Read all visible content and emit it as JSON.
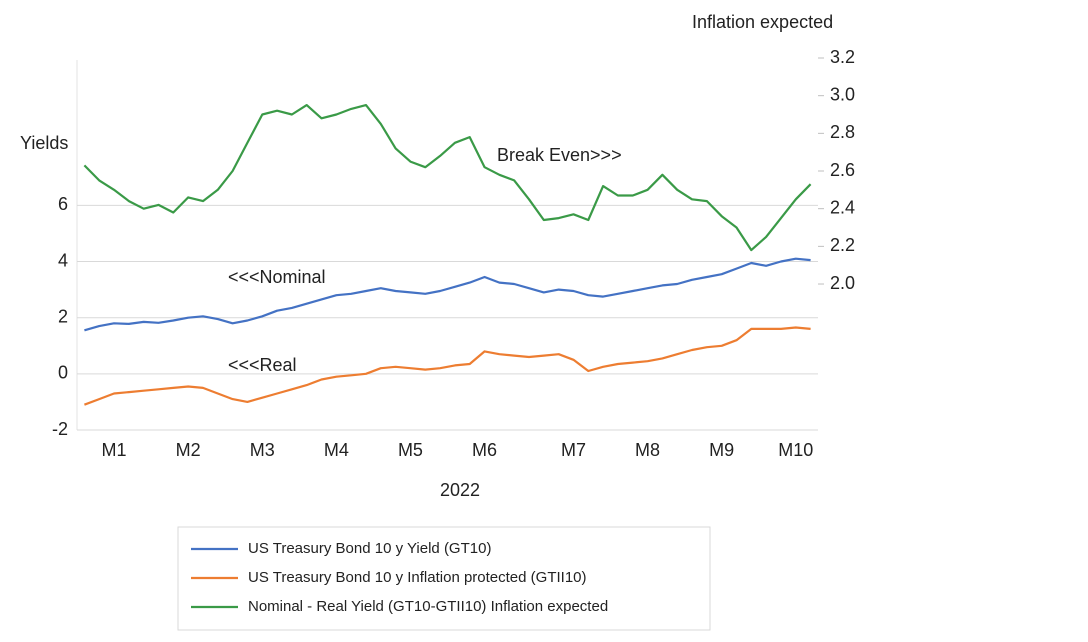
{
  "chart_data": {
    "type": "line",
    "y_label": "Yields",
    "y2_label": "Inflation expected",
    "x_label": "2022",
    "annotations": [
      "Break Even>>>",
      "<<<Nominal",
      "<<<Real"
    ],
    "categories": [
      null,
      null,
      "M1",
      null,
      null,
      null,
      null,
      "M2",
      null,
      null,
      null,
      null,
      "M3",
      null,
      null,
      null,
      null,
      "M4",
      null,
      null,
      null,
      null,
      "M5",
      null,
      null,
      null,
      null,
      "M6",
      null,
      null,
      null,
      null,
      null,
      "M7",
      null,
      null,
      null,
      null,
      "M8",
      null,
      null,
      null,
      null,
      "M9",
      null,
      null,
      null,
      null,
      "M10",
      null
    ],
    "ylim": [
      -2,
      11.25
    ],
    "yticks": [
      -2,
      0,
      2,
      4,
      6
    ],
    "y2lim": [
      1.225,
      3.2
    ],
    "y2ticks": [
      {
        "value": 2,
        "label": "2.0"
      },
      2.2,
      2.4,
      2.6,
      2.8,
      {
        "value": 3,
        "label": "3.0"
      },
      3.2
    ],
    "grid": true,
    "series": [
      {
        "name": "US Treasury Bond 10 y Yield (GT10)",
        "color": "#4472c4",
        "values": [
          1.55,
          1.7,
          1.8,
          1.78,
          1.85,
          1.82,
          1.9,
          2.0,
          2.05,
          1.95,
          1.8,
          1.9,
          2.05,
          2.25,
          2.35,
          2.5,
          2.65,
          2.8,
          2.85,
          2.95,
          3.05,
          2.95,
          2.9,
          2.85,
          2.95,
          3.1,
          3.25,
          3.45,
          3.25,
          3.2,
          3.05,
          2.9,
          3.0,
          2.95,
          2.8,
          2.75,
          2.85,
          2.95,
          3.05,
          3.15,
          3.2,
          3.35,
          3.45,
          3.55,
          3.75,
          3.95,
          3.85,
          4.0,
          4.1,
          4.05
        ]
      },
      {
        "name": "US Treasury Bond 10 y Inflation protected (GTII10)",
        "color": "#ed7d31",
        "values": [
          -1.1,
          -0.9,
          -0.7,
          -0.65,
          -0.6,
          -0.55,
          -0.5,
          -0.45,
          -0.5,
          -0.7,
          -0.9,
          -1.0,
          -0.85,
          -0.7,
          -0.55,
          -0.4,
          -0.2,
          -0.1,
          -0.05,
          0.0,
          0.2,
          0.25,
          0.2,
          0.15,
          0.2,
          0.3,
          0.35,
          0.8,
          0.7,
          0.65,
          0.6,
          0.65,
          0.7,
          0.5,
          0.1,
          0.25,
          0.35,
          0.4,
          0.45,
          0.55,
          0.7,
          0.85,
          0.95,
          1.0,
          1.2,
          1.6,
          1.6,
          1.6,
          1.65,
          1.6
        ]
      },
      {
        "name": "Nominal - Real Yield (GT10-GTII10) Inflation expected",
        "color": "#3a9a47",
        "axis": "y2",
        "values": [
          2.63,
          2.55,
          2.5,
          2.44,
          2.4,
          2.42,
          2.38,
          2.46,
          2.44,
          2.5,
          2.6,
          2.75,
          2.9,
          2.92,
          2.9,
          2.95,
          2.88,
          2.9,
          2.93,
          2.95,
          2.85,
          2.72,
          2.65,
          2.62,
          2.68,
          2.75,
          2.78,
          2.62,
          2.58,
          2.55,
          2.45,
          2.34,
          2.35,
          2.37,
          2.34,
          2.52,
          2.47,
          2.47,
          2.5,
          2.58,
          2.5,
          2.45,
          2.44,
          2.36,
          2.3,
          2.18,
          2.25,
          2.35,
          2.45,
          2.53
        ]
      }
    ]
  }
}
